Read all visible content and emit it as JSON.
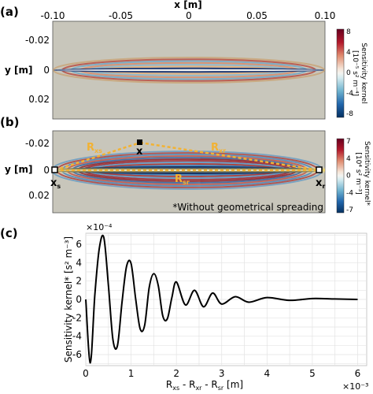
{
  "panels": {
    "a": "(a)",
    "b": "(b)",
    "c": "(c)"
  },
  "colors": {
    "background": "#ffffff",
    "map_neutral": "#c8c6bb",
    "path_orange": "#f2b233",
    "curve": "#000000"
  },
  "chart_data": [
    {
      "type": "heatmap",
      "panel": "(a)",
      "xlabel": "x [m]",
      "ylabel": "y [m]",
      "x_ticks": [
        "-0.10",
        "-0.05",
        "0",
        "0.05",
        "0.10"
      ],
      "y_ticks": [
        "-0.02",
        "0",
        "0.02"
      ],
      "xlim": [
        -0.1,
        0.1
      ],
      "ylim": [
        -0.032,
        0.032
      ],
      "colorbar": {
        "label": "Sensitivity kernel [10⁻⁵ s² m⁻⁴]",
        "label_text": "Sensitivity kernel",
        "unit_text": "[10⁻⁵ s² m⁻⁴]",
        "ticks": [
          "8",
          "4",
          "0",
          "-4",
          "-8"
        ],
        "range": [
          -8,
          8
        ]
      }
    },
    {
      "type": "heatmap",
      "panel": "(b)",
      "ylabel": "y [m]",
      "y_ticks": [
        "-0.02",
        "0",
        "0.02"
      ],
      "xlim": [
        -0.1,
        0.1
      ],
      "ylim": [
        -0.032,
        0.032
      ],
      "annotations": {
        "source": "x",
        "source_sub": "s",
        "receiver": "x",
        "receiver_sub": "r",
        "point": "x",
        "r_xs": "R",
        "r_xs_sub": "xs",
        "r_xr": "R",
        "r_xr_sub": "xr",
        "r_sr": "R",
        "r_sr_sub": "sr",
        "note": "*Without geometrical spreading"
      },
      "colorbar": {
        "label": "Sensitivity kernel* [10⁴ s² m⁻³]",
        "label_text": "Sensitivity kernel*",
        "unit_text": "[10⁴ s² m⁻³]",
        "ticks": [
          "7",
          "4",
          "0",
          "-4",
          "-7"
        ],
        "range": [
          -7,
          7
        ]
      }
    },
    {
      "type": "line",
      "panel": "(c)",
      "xlabel": "Rₓₛ - Rₓᵣ - Rₛᵣ [m]",
      "xlabel_parts": [
        "R",
        "xs",
        " - R",
        "xr",
        " - R",
        "sr",
        " [m]"
      ],
      "ylabel": "Sensitivity kernel* [s² m⁻³]",
      "x_multiplier": "×10⁻³",
      "y_multiplier": "×10⁻⁴",
      "x_ticks": [
        "0",
        "1",
        "2",
        "3",
        "4",
        "5",
        "6"
      ],
      "y_ticks": [
        "6",
        "4",
        "2",
        "0",
        "-2",
        "-4",
        "-6"
      ],
      "xlim": [
        0,
        6.2
      ],
      "ylim": [
        -7.2,
        7.2
      ],
      "grid": true,
      "series": [
        {
          "x": [
            0.0,
            0.1,
            0.2,
            0.3,
            0.4,
            0.5,
            0.6,
            0.7,
            0.8,
            0.9,
            1.0,
            1.1,
            1.2,
            1.3,
            1.4,
            1.5,
            1.6,
            1.7,
            1.8,
            1.9,
            2.0,
            2.2,
            2.4,
            2.6,
            2.8,
            3.0,
            3.3,
            3.6,
            4.0,
            4.5,
            5.0,
            5.5,
            6.0
          ],
          "y": [
            0.0,
            -6.9,
            0.5,
            5.6,
            6.7,
            1.5,
            -4.4,
            -5.0,
            -0.3,
            3.6,
            3.9,
            0.1,
            -3.2,
            -2.8,
            1.3,
            2.8,
            1.5,
            -1.8,
            -2.1,
            0.2,
            1.9,
            -0.6,
            1.0,
            -0.8,
            0.7,
            -0.5,
            0.3,
            -0.3,
            0.2,
            -0.1,
            0.1,
            0.05,
            0.0
          ]
        }
      ]
    }
  ]
}
